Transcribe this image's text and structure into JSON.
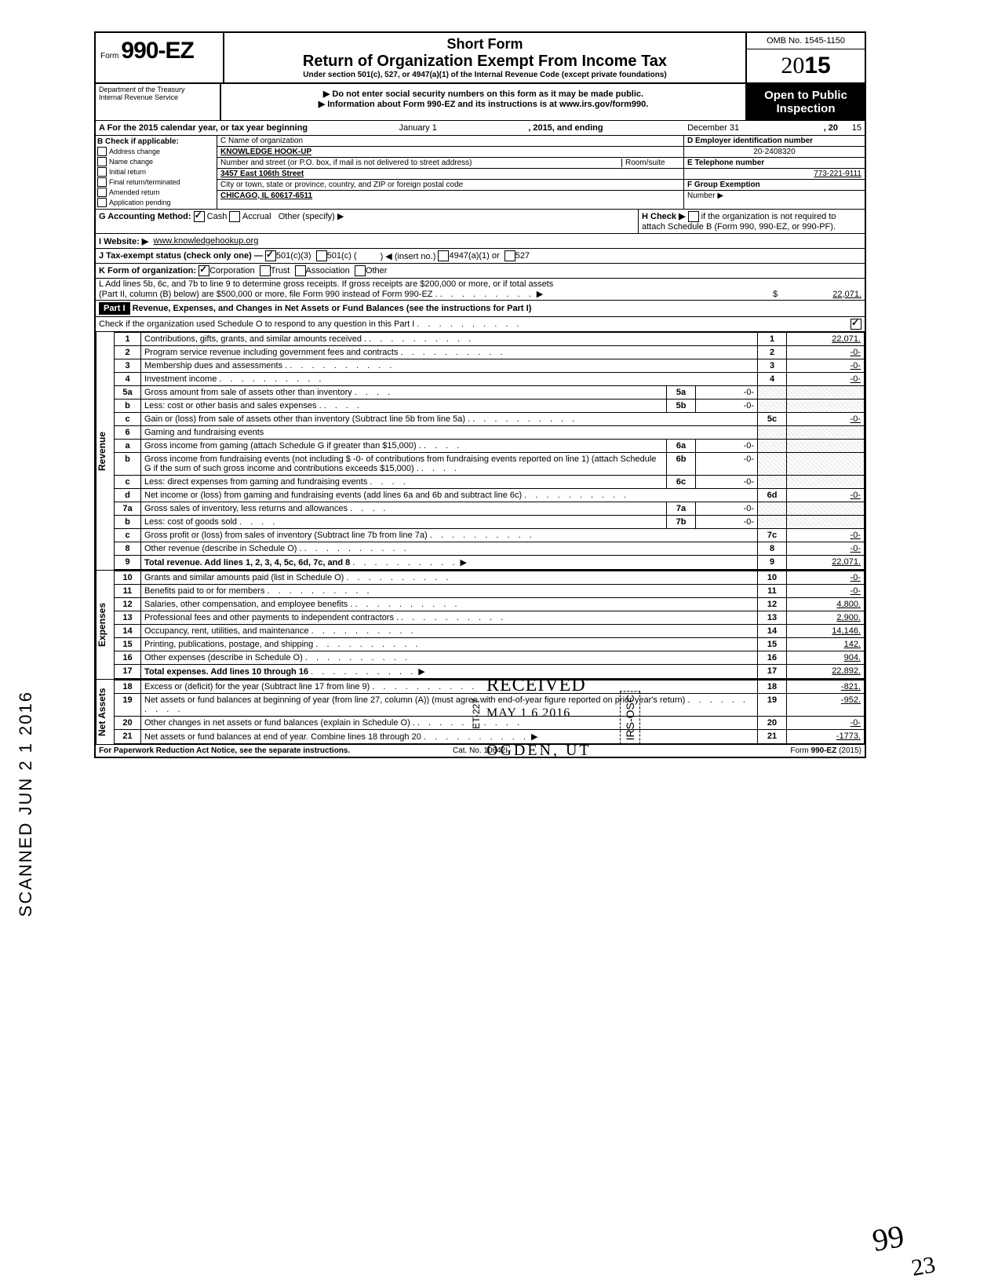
{
  "header": {
    "form_prefix": "Form",
    "form_number": "990-EZ",
    "title_line1": "Short Form",
    "title_line2": "Return of Organization Exempt From Income Tax",
    "title_line3": "Under section 501(c), 527, or 4947(a)(1) of the Internal Revenue Code (except private foundations)",
    "note1": "▶ Do not enter social security numbers on this form as it may be made public.",
    "note2": "▶ Information about Form 990-EZ and its instructions is at www.irs.gov/form990.",
    "omb": "OMB No. 1545-1150",
    "year_outline": "20",
    "year_bold": "15",
    "open_public_l1": "Open to Public",
    "open_public_l2": "Inspection",
    "dept_l1": "Department of the Treasury",
    "dept_l2": "Internal Revenue Service"
  },
  "line_a": {
    "label": "A For the 2015 calendar year, or tax year beginning",
    "begin": "January 1",
    "mid": ", 2015, and ending",
    "end": "December 31",
    "suffix": ", 20",
    "yy": "15"
  },
  "section_b": {
    "label": "B  Check if applicable:",
    "items": [
      "Address change",
      "Name change",
      "Initial return",
      "Final return/terminated",
      "Amended return",
      "Application pending"
    ]
  },
  "section_c": {
    "label": "C  Name of organization",
    "org_name": "KNOWLEDGE HOOK-UP",
    "addr_label": "Number and street (or P.O. box, if mail is not delivered to street address)",
    "room_label": "Room/suite",
    "street": "3457 East 106th Street",
    "city_label": "City or town, state or province, country, and ZIP or foreign postal code",
    "city": "CHICAGO, IL 60617-6511"
  },
  "section_d": {
    "label": "D Employer identification number",
    "value": "20-2408320"
  },
  "section_e": {
    "label": "E Telephone number",
    "value": "773-221-9111"
  },
  "section_f": {
    "label": "F Group Exemption",
    "label2": "Number ▶"
  },
  "line_g": {
    "label": "G  Accounting Method:",
    "opt1": "Cash",
    "opt2": "Accrual",
    "opt3": "Other (specify) ▶"
  },
  "line_h": {
    "label": "H  Check ▶",
    "text": "if the organization is not required to attach Schedule B (Form 990, 990-EZ, or 990-PF)."
  },
  "line_i": {
    "label": "I   Website: ▶",
    "value": "www.knowledgehookup.org"
  },
  "line_j": {
    "label": "J  Tax-exempt status (check only one) —",
    "o1": "501(c)(3)",
    "o2": "501(c) (",
    "o2b": ") ◀ (insert no.)",
    "o3": "4947(a)(1) or",
    "o4": "527"
  },
  "line_k": {
    "label": "K  Form of organization:",
    "o1": "Corporation",
    "o2": "Trust",
    "o3": "Association",
    "o4": "Other"
  },
  "line_l": {
    "text1": "L  Add lines 5b, 6c, and 7b to line 9 to determine gross receipts. If gross receipts are $200,000 or more, or if total assets",
    "text2": "(Part II, column (B) below) are $500,000 or more, file Form 990 instead of Form 990-EZ .",
    "amount": "22,071."
  },
  "part1": {
    "label": "Part I",
    "title": "Revenue, Expenses, and Changes in Net Assets or Fund Balances (see the instructions for Part I)",
    "check_line": "Check if the organization used Schedule O to respond to any question in this Part I"
  },
  "sections": {
    "revenue_label": "Revenue",
    "expenses_label": "Expenses",
    "netassets_label": "Net Assets"
  },
  "rows": [
    {
      "n": "1",
      "d": "Contributions, gifts, grants, and similar amounts received .",
      "ln": "1",
      "amt": "22,071."
    },
    {
      "n": "2",
      "d": "Program service revenue including government fees and contracts",
      "ln": "2",
      "amt": "-0-"
    },
    {
      "n": "3",
      "d": "Membership dues and assessments .",
      "ln": "3",
      "amt": "-0-"
    },
    {
      "n": "4",
      "d": "Investment income",
      "ln": "4",
      "amt": "-0-"
    },
    {
      "n": "5a",
      "d": "Gross amount from sale of assets other than inventory",
      "sub": "5a",
      "subamt": "-0-"
    },
    {
      "n": "b",
      "d": "Less: cost or other basis and sales expenses .",
      "sub": "5b",
      "subamt": "-0-"
    },
    {
      "n": "c",
      "d": "Gain or (loss) from sale of assets other than inventory (Subtract line 5b from line 5a) .",
      "ln": "5c",
      "amt": "-0-"
    },
    {
      "n": "6",
      "d": "Gaming and fundraising events"
    },
    {
      "n": "a",
      "d": "Gross income from gaming (attach Schedule G if greater than $15,000) .",
      "sub": "6a",
      "subamt": "-0-"
    },
    {
      "n": "b",
      "d": "Gross income from fundraising events (not including  $             -0- of contributions from fundraising events reported on line 1) (attach Schedule G if the sum of such gross income and contributions exceeds $15,000) .",
      "sub": "6b",
      "subamt": "-0-"
    },
    {
      "n": "c",
      "d": "Less: direct expenses from gaming and fundraising events",
      "sub": "6c",
      "subamt": "-0-"
    },
    {
      "n": "d",
      "d": "Net income or (loss) from gaming and fundraising events (add lines 6a and 6b and subtract line 6c)",
      "ln": "6d",
      "amt": "-0-"
    },
    {
      "n": "7a",
      "d": "Gross sales of inventory, less returns and allowances",
      "sub": "7a",
      "subamt": "-0-"
    },
    {
      "n": "b",
      "d": "Less: cost of goods sold",
      "sub": "7b",
      "subamt": "-0-"
    },
    {
      "n": "c",
      "d": "Gross profit or (loss) from sales of inventory (Subtract line 7b from line 7a)",
      "ln": "7c",
      "amt": "-0-"
    },
    {
      "n": "8",
      "d": "Other revenue (describe in Schedule O) .",
      "ln": "8",
      "amt": "-0-"
    },
    {
      "n": "9",
      "d": "Total revenue. Add lines 1, 2, 3, 4, 5c, 6d, 7c, and 8",
      "ln": "9",
      "amt": "22,071.",
      "bold": true,
      "arrow": true
    }
  ],
  "exp_rows": [
    {
      "n": "10",
      "d": "Grants and similar amounts paid (list in Schedule O)",
      "ln": "10",
      "amt": "-0-"
    },
    {
      "n": "11",
      "d": "Benefits paid to or for members",
      "ln": "11",
      "amt": "-0-"
    },
    {
      "n": "12",
      "d": "Salaries, other compensation, and employee benefits .",
      "ln": "12",
      "amt": "4,800."
    },
    {
      "n": "13",
      "d": "Professional fees and other payments to independent contractors .",
      "ln": "13",
      "amt": "2,900."
    },
    {
      "n": "14",
      "d": "Occupancy, rent, utilities, and maintenance",
      "ln": "14",
      "amt": "14,146."
    },
    {
      "n": "15",
      "d": "Printing, publications, postage, and shipping",
      "ln": "15",
      "amt": "142."
    },
    {
      "n": "16",
      "d": "Other expenses (describe in Schedule O)",
      "ln": "16",
      "amt": "904."
    },
    {
      "n": "17",
      "d": "Total expenses. Add lines 10 through 16",
      "ln": "17",
      "amt": "22,892.",
      "bold": true,
      "arrow": true
    }
  ],
  "na_rows": [
    {
      "n": "18",
      "d": "Excess or (deficit) for the year (Subtract line 17 from line 9)",
      "ln": "18",
      "amt": "-821."
    },
    {
      "n": "19",
      "d": "Net assets or fund balances at beginning of year (from line 27, column (A)) (must agree with end-of-year figure reported on prior year's return)",
      "ln": "19",
      "amt": "-952."
    },
    {
      "n": "20",
      "d": "Other changes in net assets or fund balances (explain in Schedule O) .",
      "ln": "20",
      "amt": "-0-"
    },
    {
      "n": "21",
      "d": "Net assets or fund balances at end of year. Combine lines 18 through 20",
      "ln": "21",
      "amt": "-1773.",
      "arrow": true
    }
  ],
  "footer": {
    "left": "For Paperwork Reduction Act Notice, see the separate instructions.",
    "mid": "Cat. No. 10642I",
    "right": "Form 990-EZ (2015)"
  },
  "stamps": {
    "scanned": "SCANNED JUN 2 1 2016",
    "received": "RECEIVED",
    "received_date": "MAY 1 6 2016",
    "received_loc": "OGDEN, UT",
    "irs_osc": "IRS-OSC",
    "et": "ET-227",
    "hand1": "99",
    "hand2": "23"
  }
}
